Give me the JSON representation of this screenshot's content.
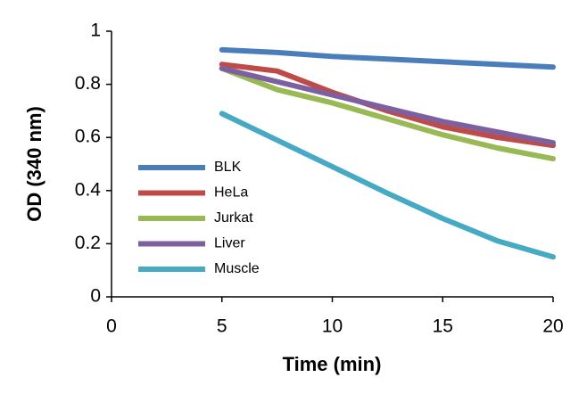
{
  "chart_data": {
    "type": "line",
    "x_label": "Time (min)",
    "y_label": "OD (340 nm)",
    "x": [
      5,
      7.5,
      10,
      12.5,
      15,
      17.5,
      20
    ],
    "series": [
      {
        "name": "BLK",
        "color": "#4a7ebb",
        "values": [
          0.93,
          0.92,
          0.905,
          0.895,
          0.885,
          0.875,
          0.865
        ]
      },
      {
        "name": "HeLa",
        "color": "#be4b48",
        "values": [
          0.875,
          0.85,
          0.77,
          0.7,
          0.64,
          0.6,
          0.57
        ]
      },
      {
        "name": "Jurkat",
        "color": "#98b954",
        "values": [
          0.86,
          0.78,
          0.73,
          0.67,
          0.61,
          0.56,
          0.52
        ]
      },
      {
        "name": "Liver",
        "color": "#7d60a0",
        "values": [
          0.86,
          0.81,
          0.76,
          0.71,
          0.66,
          0.62,
          0.58
        ]
      },
      {
        "name": "Muscle",
        "color": "#46aac5",
        "values": [
          0.69,
          0.59,
          0.49,
          0.39,
          0.295,
          0.21,
          0.15
        ]
      }
    ],
    "xlim": [
      0,
      20
    ],
    "xticks": [
      0,
      5,
      10,
      15,
      20
    ],
    "ylim": [
      0,
      1
    ],
    "yticks": [
      0,
      0.2,
      0.4,
      0.6,
      0.8,
      1
    ],
    "grid": false,
    "legend": "left"
  }
}
